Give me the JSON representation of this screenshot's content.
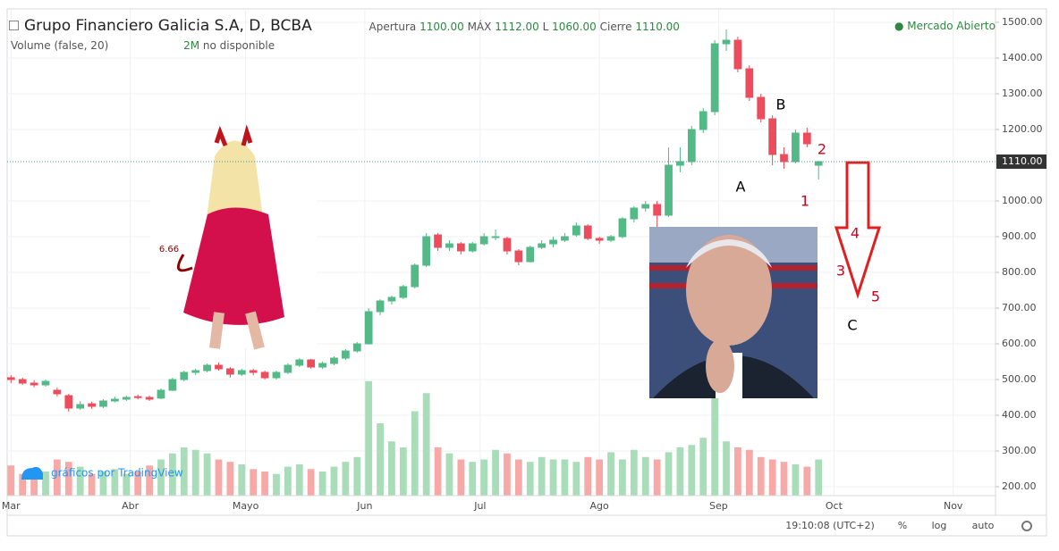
{
  "chart_data": {
    "type": "candlestick",
    "title": "Grupo Financiero Galicia S.A, D, BCBA",
    "header": {
      "open_label": "Apertura",
      "open": "1100.00",
      "high_label": "MÁX",
      "high": "1112.00",
      "low_label": "L",
      "low": "1060.00",
      "close_label": "Cierre",
      "close": "1110.00"
    },
    "volume_title": "Volume (false, 20)",
    "volume_badge": "2M",
    "volume_note": "no disponible",
    "market_status": "Mercado Abierto",
    "watermark": "gráficos por TradingView",
    "clock": "19:10:08 (UTC+2)",
    "buttons": [
      "%",
      "log",
      "auto"
    ],
    "up_color": "#53b987",
    "down_color": "#eb4d5c",
    "volume_up_color": "#a9dcb8",
    "volume_down_color": "#f7a9a7",
    "grid": true,
    "xlim": [
      -1,
      256
    ],
    "ylim": [
      175,
      1537.5
    ],
    "volume_lim": [
      0,
      100
    ],
    "xticks": [
      {
        "value": 0,
        "label": "Mar"
      },
      {
        "value": 31,
        "label": "Abr"
      },
      {
        "value": 61,
        "label": "Mayo"
      },
      {
        "value": 92,
        "label": "Jun"
      },
      {
        "value": 122,
        "label": "Jul"
      },
      {
        "value": 153,
        "label": "Ago"
      },
      {
        "value": 184,
        "label": "Sep"
      },
      {
        "value": 214,
        "label": "Oct"
      },
      {
        "value": 245,
        "label": "Nov"
      }
    ],
    "yticks": [
      {
        "value": 200,
        "label": "200.00"
      },
      {
        "value": 300,
        "label": "300.00"
      },
      {
        "value": 400,
        "label": "400.00"
      },
      {
        "value": 500,
        "label": "500.00"
      },
      {
        "value": 600,
        "label": "600.00"
      },
      {
        "value": 700,
        "label": "700.00"
      },
      {
        "value": 800,
        "label": "800.00"
      },
      {
        "value": 900,
        "label": "900.00"
      },
      {
        "value": 1000,
        "label": "1000.00"
      },
      {
        "value": 1200,
        "label": "1200.00"
      },
      {
        "value": 1300,
        "label": "1300.00"
      },
      {
        "value": 1400,
        "label": "1400.00"
      },
      {
        "value": 1500,
        "label": "1500.00"
      }
    ],
    "price_line": {
      "value": 1110,
      "label": "1110.00"
    },
    "x": [
      0,
      3,
      6,
      9,
      12,
      15,
      18,
      21,
      24,
      27,
      30,
      33,
      36,
      39,
      42,
      45,
      48,
      51,
      54,
      57,
      60,
      63,
      66,
      69,
      72,
      75,
      78,
      81,
      84,
      87,
      90,
      93,
      96,
      99,
      102,
      105,
      108,
      111,
      114,
      117,
      120,
      123,
      126,
      129,
      132,
      135,
      138,
      141,
      144,
      147,
      150,
      153,
      156,
      159,
      162,
      165,
      168,
      171,
      174,
      177,
      180,
      183,
      186,
      189,
      192,
      195,
      198,
      201,
      204,
      207,
      210
    ],
    "ohlc": [
      [
        505,
        512,
        490,
        500
      ],
      [
        500,
        505,
        485,
        490
      ],
      [
        490,
        498,
        478,
        485
      ],
      [
        485,
        500,
        480,
        495
      ],
      [
        470,
        478,
        452,
        460
      ],
      [
        455,
        460,
        410,
        420
      ],
      [
        420,
        440,
        415,
        430
      ],
      [
        432,
        438,
        418,
        425
      ],
      [
        425,
        445,
        420,
        440
      ],
      [
        440,
        452,
        436,
        445
      ],
      [
        445,
        455,
        440,
        450
      ],
      [
        452,
        458,
        444,
        450
      ],
      [
        450,
        455,
        440,
        445
      ],
      [
        448,
        475,
        445,
        470
      ],
      [
        470,
        505,
        468,
        500
      ],
      [
        500,
        525,
        495,
        520
      ],
      [
        520,
        530,
        512,
        525
      ],
      [
        525,
        545,
        520,
        540
      ],
      [
        540,
        548,
        525,
        530
      ],
      [
        530,
        535,
        505,
        515
      ],
      [
        515,
        530,
        510,
        525
      ],
      [
        525,
        530,
        512,
        520
      ],
      [
        520,
        525,
        500,
        505
      ],
      [
        505,
        525,
        500,
        520
      ],
      [
        520,
        545,
        515,
        540
      ],
      [
        540,
        560,
        535,
        555
      ],
      [
        555,
        558,
        530,
        535
      ],
      [
        535,
        550,
        530,
        545
      ],
      [
        545,
        565,
        540,
        560
      ],
      [
        560,
        585,
        555,
        580
      ],
      [
        580,
        605,
        575,
        600
      ],
      [
        600,
        700,
        598,
        690
      ],
      [
        690,
        725,
        680,
        720
      ],
      [
        720,
        735,
        710,
        730
      ],
      [
        730,
        765,
        725,
        760
      ],
      [
        760,
        825,
        755,
        820
      ],
      [
        820,
        910,
        815,
        900
      ],
      [
        905,
        910,
        860,
        870
      ],
      [
        870,
        890,
        860,
        880
      ],
      [
        880,
        885,
        850,
        860
      ],
      [
        860,
        885,
        855,
        880
      ],
      [
        880,
        910,
        875,
        900
      ],
      [
        900,
        920,
        890,
        900
      ],
      [
        895,
        900,
        850,
        860
      ],
      [
        860,
        865,
        820,
        830
      ],
      [
        830,
        875,
        828,
        870
      ],
      [
        870,
        890,
        865,
        880
      ],
      [
        880,
        900,
        870,
        890
      ],
      [
        890,
        910,
        885,
        900
      ],
      [
        905,
        940,
        900,
        930
      ],
      [
        930,
        935,
        890,
        895
      ],
      [
        895,
        900,
        880,
        890
      ],
      [
        890,
        905,
        885,
        900
      ],
      [
        900,
        955,
        895,
        950
      ],
      [
        950,
        985,
        940,
        980
      ],
      [
        980,
        1000,
        970,
        990
      ],
      [
        990,
        1000,
        900,
        960
      ],
      [
        960,
        1150,
        955,
        1100
      ],
      [
        1100,
        1150,
        1080,
        1110
      ],
      [
        1110,
        1210,
        1100,
        1200
      ],
      [
        1200,
        1260,
        1190,
        1250
      ],
      [
        1250,
        1450,
        1240,
        1440
      ],
      [
        1440,
        1480,
        1420,
        1450
      ],
      [
        1450,
        1460,
        1360,
        1370
      ],
      [
        1370,
        1380,
        1280,
        1290
      ],
      [
        1290,
        1300,
        1220,
        1230
      ],
      [
        1230,
        1240,
        1100,
        1130
      ],
      [
        1130,
        1150,
        1090,
        1110
      ],
      [
        1110,
        1200,
        1105,
        1190
      ],
      [
        1190,
        1205,
        1150,
        1160
      ],
      [
        1100,
        1112,
        1060,
        1110
      ]
    ],
    "volume": [
      25,
      18,
      22,
      20,
      30,
      28,
      24,
      18,
      20,
      22,
      18,
      20,
      25,
      30,
      35,
      40,
      38,
      35,
      30,
      28,
      26,
      22,
      20,
      18,
      24,
      26,
      22,
      20,
      24,
      28,
      32,
      95,
      60,
      45,
      40,
      70,
      85,
      40,
      35,
      30,
      28,
      30,
      38,
      35,
      30,
      28,
      32,
      30,
      30,
      28,
      32,
      30,
      36,
      30,
      38,
      32,
      30,
      36,
      40,
      42,
      48,
      90,
      45,
      40,
      38,
      32,
      30,
      28,
      26,
      24,
      30
    ],
    "annotations": [
      {
        "text": "A",
        "color": "#000000"
      },
      {
        "text": "B",
        "color": "#000000"
      },
      {
        "text": "C",
        "color": "#000000"
      },
      {
        "text": "1",
        "color": "#d0021b"
      },
      {
        "text": "2",
        "color": "#d0021b"
      },
      {
        "text": "3",
        "color": "#d0021b"
      },
      {
        "text": "4",
        "color": "#d0021b"
      },
      {
        "text": "5",
        "color": "#d0021b"
      },
      {
        "text": "6.66",
        "color": "#8b0000"
      }
    ]
  }
}
